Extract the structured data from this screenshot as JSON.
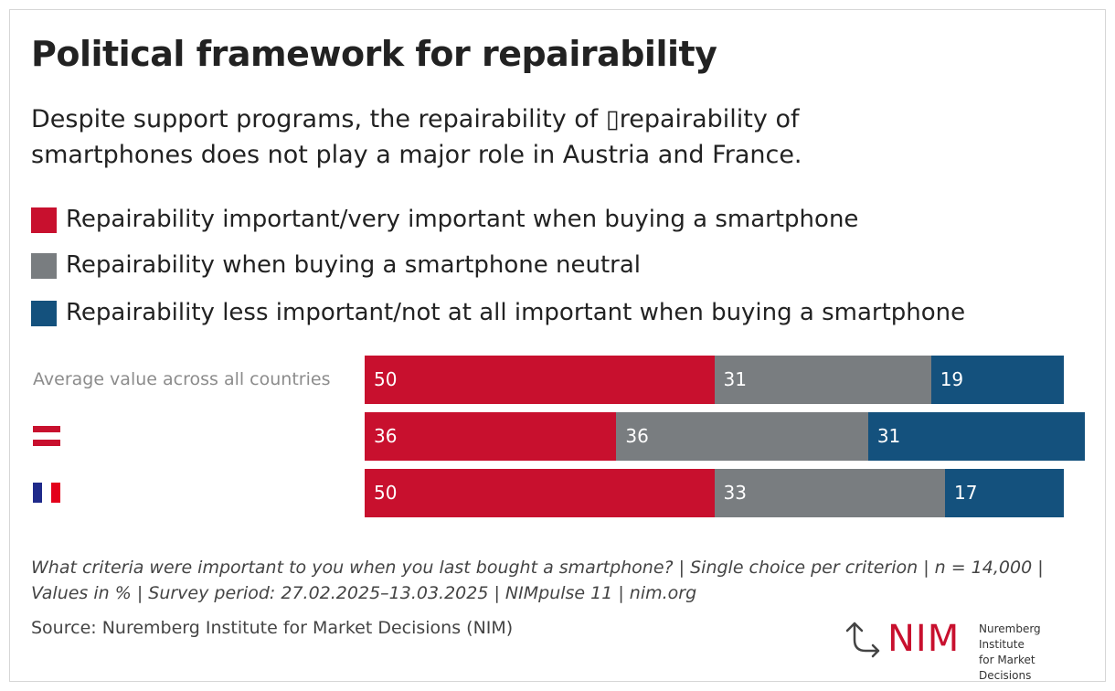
{
  "title": "Political framework for repairability",
  "subtitle": "Despite support programs, the repairability of ▯repairability of smartphones does not play a major role in Austria and France.",
  "colors": {
    "important": "#c8102e",
    "neutral": "#797d80",
    "less_important": "#14517d",
    "austria_red": "#c8102e",
    "france_blue": "#1f2a8a",
    "france_red": "#e3001b"
  },
  "chart_data": {
    "type": "bar",
    "orientation": "horizontal",
    "stacked": true,
    "categories": [
      "Average value across all countries",
      "Austria",
      "France"
    ],
    "category_labels": [
      "Average value across all countries",
      "",
      ""
    ],
    "category_icons": [
      "",
      "austria-flag-icon",
      "france-flag-icon"
    ],
    "series": [
      {
        "name": "Repairability important/very important when buying a smartphone",
        "values": [
          50,
          36,
          50
        ],
        "color": "#c8102e"
      },
      {
        "name": "Repairability when buying a smartphone neutral",
        "values": [
          31,
          36,
          33
        ],
        "color": "#797d80"
      },
      {
        "name": "Repairability less important/not at all important when buying a smartphone",
        "values": [
          19,
          31,
          17
        ],
        "color": "#14517d"
      }
    ],
    "xlim": [
      0,
      103
    ],
    "legend_position": "top-left",
    "grid": false,
    "data_labels": true
  },
  "note": "What criteria were important to you when you last bought a smartphone? | Single choice per criterion | n = 14,000 | Values in % | Survey period: 27.02.2025–13.03.2025 | NIMpulse 11 | nim.org",
  "source": "Source: Nuremberg Institute for Market Decisions (NIM)",
  "logo": {
    "text": "NIM",
    "line1": "Nuremberg Institute",
    "line2": "for Market Decisions"
  }
}
